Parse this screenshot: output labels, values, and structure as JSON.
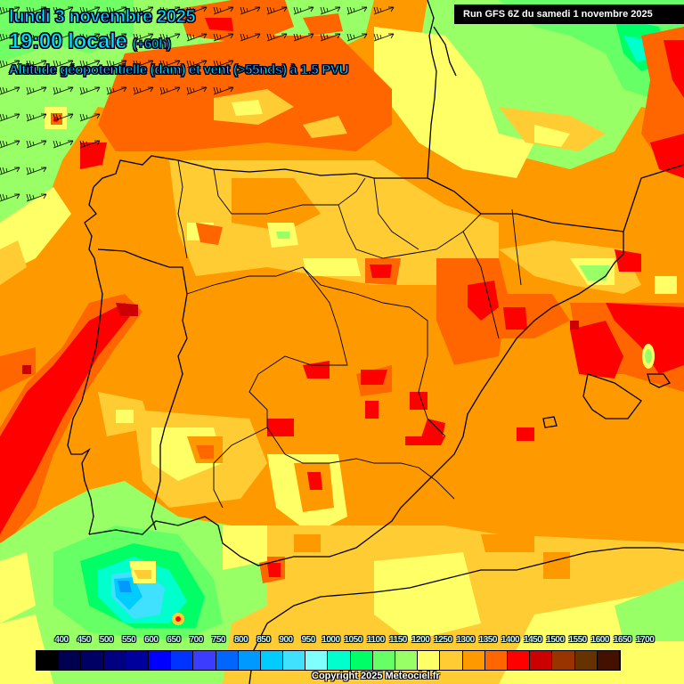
{
  "header": {
    "date": "lundi 3 novembre 2025",
    "time": "19:00 locale",
    "lead": "(+60h)",
    "parameter": "Altitude géopotentielle (dam) et vent (>55nds) à 1.5 PVU"
  },
  "run_info": "Run GFS 6Z du samedi 1 novembre 2025",
  "colorbar": {
    "unit": "dam",
    "labels": [
      "400",
      "450",
      "500",
      "550",
      "600",
      "650",
      "700",
      "750",
      "800",
      "850",
      "900",
      "950",
      "1000",
      "1050",
      "1100",
      "1150",
      "1200",
      "1250",
      "1300",
      "1350",
      "1400",
      "1450",
      "1500",
      "1550",
      "1600",
      "1650",
      "1700"
    ],
    "colors": [
      "#000000",
      "#000050",
      "#000064",
      "#000080",
      "#00009c",
      "#0000ff",
      "#0033ff",
      "#3c3cff",
      "#0066ff",
      "#0099ff",
      "#00ccff",
      "#40e0ff",
      "#80ffff",
      "#00ffcc",
      "#00ff66",
      "#66ff66",
      "#99ff66",
      "#ffff66",
      "#ffcc33",
      "#ff9900",
      "#ff6600",
      "#ff0000",
      "#cc0000",
      "#993300",
      "#663300",
      "#441100"
    ]
  },
  "map": {
    "region": "Péninsule Ibérique",
    "wind_barbs_region": "Atlantique nord-ouest",
    "colors": {
      "green_light": "#99ff66",
      "green": "#66ff66",
      "green_mid": "#00ff66",
      "cyan_green": "#00ffcc",
      "cyan": "#40e0ff",
      "blue": "#00ccff",
      "blue_dark": "#0099ff",
      "yellow": "#ffff66",
      "yellow_orange": "#ffcc33",
      "orange": "#ff9900",
      "orange_dark": "#ff6600",
      "red": "#ff0000",
      "dark_red": "#cc0000"
    }
  },
  "footer": {
    "copyright": "Copyright 2025 Meteociel.fr"
  }
}
